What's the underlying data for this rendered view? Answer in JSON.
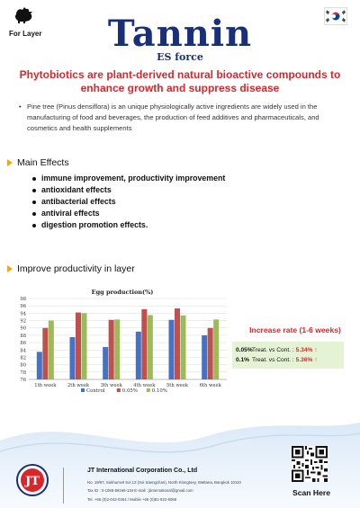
{
  "header": {
    "for_layer": "For Layer",
    "title": "Tannin",
    "subtitle": "ES force"
  },
  "headline": "Phytobiotics are plant-derived natural bioactive compounds to enhance growth and suppress disease",
  "intro_bullet": "Pine tree (Pinus densiflora) is an unique physiologically active ingredients are widely used in the manufacturing of food and beverages, the production of feed additives and pharmaceuticals, and cosmetics and health supplements",
  "main_effects": {
    "heading": "Main Effects",
    "items": [
      "immune improvement, productivity improvement",
      "antioxidant effects",
      "antibacterial effects",
      "antiviral effects",
      "digestion promotion effects."
    ]
  },
  "productivity": {
    "heading": "Improve productivity in layer"
  },
  "chart_data": {
    "type": "bar",
    "title": "Egg production(%)",
    "categories": [
      "1th week",
      "2th week",
      "3th week",
      "4th week",
      "5th week",
      "6th week"
    ],
    "series": [
      {
        "name": "Control",
        "color": "#4472c4",
        "values": [
          83.5,
          87.5,
          84.8,
          89.0,
          92.2,
          88.0
        ]
      },
      {
        "name": "0.05%",
        "color": "#c0504d",
        "values": [
          90.0,
          94.2,
          92.2,
          95.1,
          95.3,
          90.0
        ]
      },
      {
        "name": "0.10%",
        "color": "#9bbb59",
        "values": [
          92.0,
          94.0,
          92.3,
          93.5,
          93.4,
          92.3
        ]
      }
    ],
    "ylim": [
      76,
      98
    ],
    "yticks": [
      76,
      78,
      80,
      82,
      84,
      86,
      88,
      90,
      92,
      94,
      96,
      98
    ],
    "grid": true,
    "legend": "bottom"
  },
  "increase": {
    "title": "Increase rate (1-6 weeks)",
    "rows": [
      {
        "dose": "0.05%",
        "compare": "Treat. vs Cont. :",
        "value": "5.34%",
        "arrow": "↑"
      },
      {
        "dose": "0.1%",
        "compare": "Treat. vs Cont. :",
        "value": "5.36%",
        "arrow": "↑"
      }
    ]
  },
  "footer": {
    "company": "JT International Corporation Co., Ltd",
    "address": "No. 19/97, Sukhumvit Soi 13 (Soi Saengchan), North Klongtoey, Wattana, Bangkok 10110",
    "tax_email": "Tax ID : 0-1055-58166-134     E-mail : jtinternational@gmail.com",
    "tel": "Tel. +66 (0)2-042-0364 / Mobile +66 (0)81-922-5068",
    "scan_here": "Scan Here",
    "logo_letters": "JT"
  },
  "colors": {
    "title_blue": "#1a2f7a",
    "headline_red": "#d9262c",
    "bullet_orange": "#f0a818",
    "increase_box": "#e4f3d4"
  }
}
